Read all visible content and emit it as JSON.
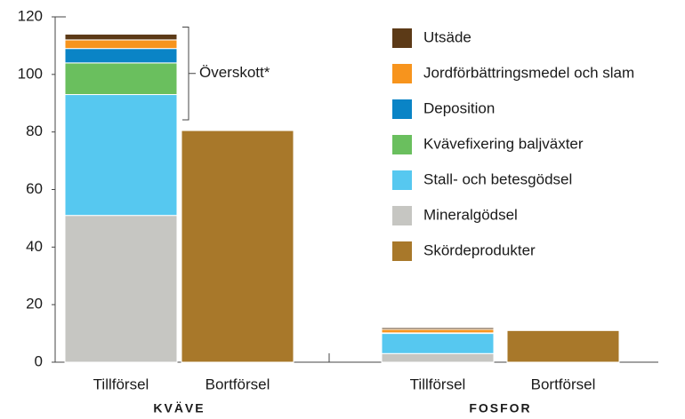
{
  "chart_data": {
    "type": "stacked_bar",
    "groups": [
      "KVÄVE",
      "FOSFOR"
    ],
    "categories": [
      "Tillförsel",
      "Bortförsel",
      "Tillförsel",
      "Bortförsel"
    ],
    "series": [
      {
        "name": "Utsäde",
        "color": "#5c3a17",
        "values": [
          2,
          null,
          0.6,
          null
        ]
      },
      {
        "name": "Jordförbättringsmedel och slam",
        "color": "#f7941d",
        "values": [
          3,
          null,
          1.2,
          null
        ]
      },
      {
        "name": "Deposition",
        "color": "#0a84c6",
        "values": [
          5,
          null,
          0.2,
          null
        ]
      },
      {
        "name": "Kvävefixering baljväxter",
        "color": "#6abf5e",
        "values": [
          11,
          null,
          0,
          null
        ]
      },
      {
        "name": "Stall- och betesgödsel",
        "color": "#56c8f0",
        "values": [
          42,
          null,
          7,
          null
        ]
      },
      {
        "name": "Mineralgödsel",
        "color": "#c6c6c2",
        "values": [
          51,
          null,
          3,
          null
        ]
      },
      {
        "name": "Skördeprodukter",
        "color": "#a8782a",
        "values": [
          null,
          80.5,
          null,
          11
        ]
      }
    ],
    "annotation": "Överskott*",
    "ylim": [
      0,
      120
    ],
    "yticks": [
      0,
      20,
      40,
      60,
      80,
      100,
      120
    ]
  }
}
